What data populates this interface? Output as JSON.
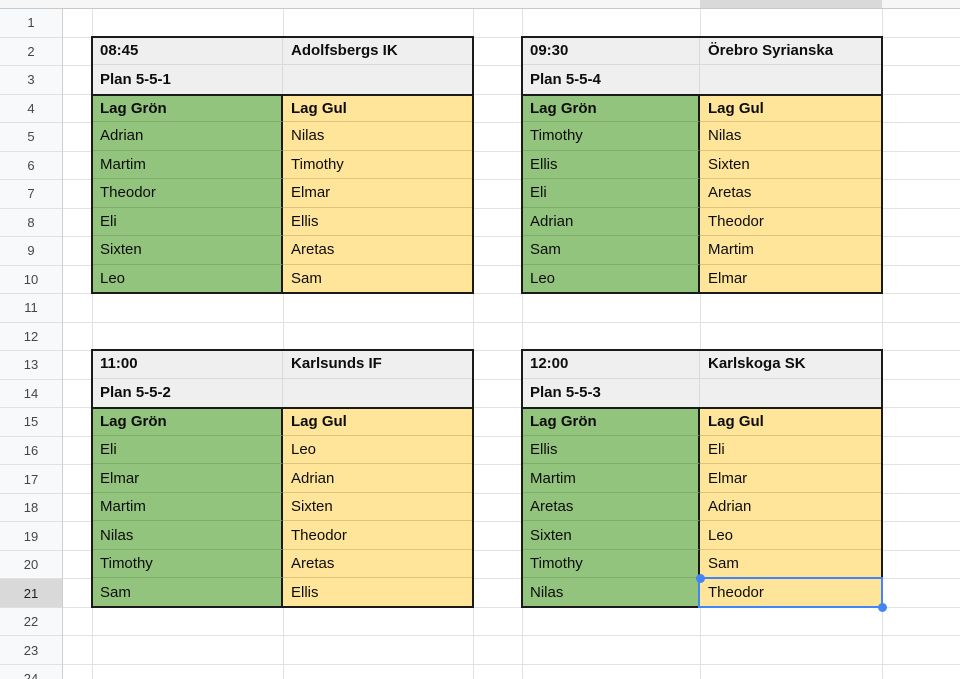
{
  "sheet": {
    "row_numbers": [
      "1",
      "2",
      "3",
      "4",
      "5",
      "6",
      "7",
      "8",
      "9",
      "10",
      "11",
      "12",
      "13",
      "14",
      "15",
      "16",
      "17",
      "18",
      "19",
      "20",
      "21",
      "22",
      "23",
      "24"
    ],
    "highlighted_row": "21"
  },
  "colors": {
    "team_green": "#93c47d",
    "team_yellow": "#ffe599",
    "header_gray": "#efefef",
    "selection_blue": "#4285f4",
    "row_highlight_gray": "#d9d9d9"
  },
  "selection": {
    "value": "Theodor"
  },
  "blocks": [
    {
      "time": "08:45",
      "club": "Adolfsbergs IK",
      "plan": "Plan 5-5-1",
      "green_label": "Lag Grön",
      "yellow_label": "Lag Gul",
      "green": [
        "Adrian",
        "Martim",
        "Theodor",
        "Eli",
        "Sixten",
        "Leo"
      ],
      "yellow": [
        "Nilas",
        "Timothy",
        "Elmar",
        "Ellis",
        "Aretas",
        "Sam"
      ]
    },
    {
      "time": "09:30",
      "club": "Örebro Syrianska",
      "plan": "Plan 5-5-4",
      "green_label": "Lag Grön",
      "yellow_label": "Lag Gul",
      "green": [
        "Timothy",
        "Ellis",
        "Eli",
        "Adrian",
        "Sam",
        "Leo"
      ],
      "yellow": [
        "Nilas",
        "Sixten",
        "Aretas",
        "Theodor",
        "Martim",
        "Elmar"
      ]
    },
    {
      "time": "11:00",
      "club": "Karlsunds IF",
      "plan": "Plan 5-5-2",
      "green_label": "Lag Grön",
      "yellow_label": "Lag Gul",
      "green": [
        "Eli",
        "Elmar",
        "Martim",
        "Nilas",
        "Timothy",
        "Sam"
      ],
      "yellow": [
        "Leo",
        "Adrian",
        "Sixten",
        "Theodor",
        "Aretas",
        "Ellis"
      ]
    },
    {
      "time": "12:00",
      "club": "Karlskoga SK",
      "plan": "Plan 5-5-3",
      "green_label": "Lag Grön",
      "yellow_label": "Lag Gul",
      "green": [
        "Ellis",
        "Martim",
        "Aretas",
        "Sixten",
        "Timothy",
        "Nilas"
      ],
      "yellow": [
        "Eli",
        "Elmar",
        "Adrian",
        "Leo",
        "Sam",
        "Theodor"
      ]
    }
  ]
}
